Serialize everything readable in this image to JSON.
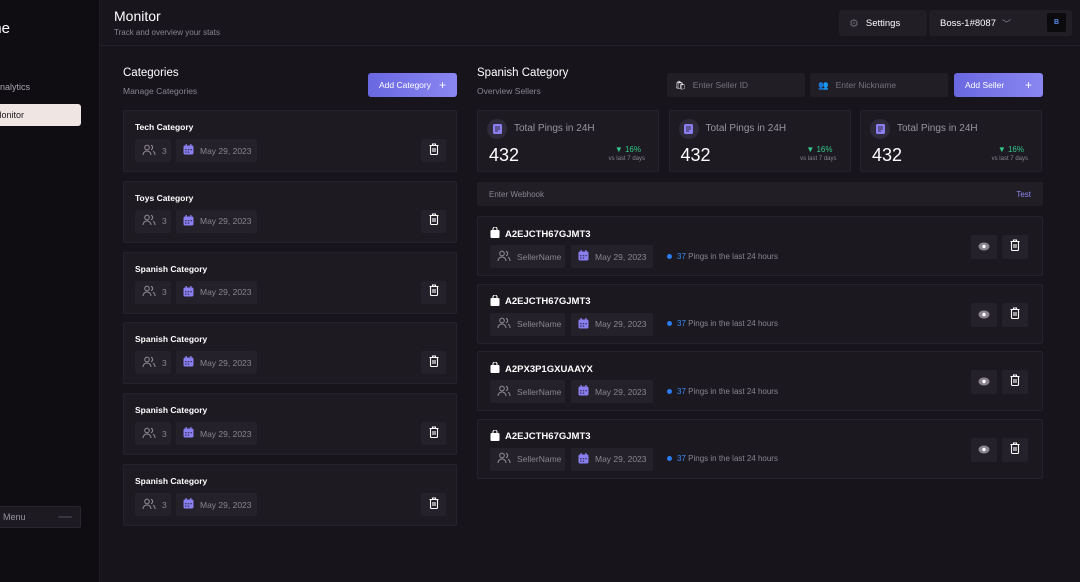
{
  "sidebar": {
    "brand": "Name",
    "items": [
      {
        "label": "Analytics"
      },
      {
        "label": "Monitor"
      }
    ],
    "menu_label": "Menu"
  },
  "header": {
    "title": "Monitor",
    "subtitle": "Track and overview your stats",
    "settings_label": "Settings",
    "username": "Boss-1#8087",
    "avatar_initial": "B"
  },
  "categories": {
    "title": "Categories",
    "subtitle": "Manage Categories",
    "add_label": "Add Category",
    "items": [
      {
        "name": "Tech Category",
        "members": "3",
        "date": "May 29, 2023"
      },
      {
        "name": "Toys Category",
        "members": "3",
        "date": "May 29, 2023"
      },
      {
        "name": "Spanish Category",
        "members": "3",
        "date": "May 29, 2023"
      },
      {
        "name": "Spanish Category",
        "members": "3",
        "date": "May 29, 2023"
      },
      {
        "name": "Spanish Category",
        "members": "3",
        "date": "May 29, 2023"
      },
      {
        "name": "Spanish Category",
        "members": "3",
        "date": "May 29, 2023"
      }
    ]
  },
  "sellers": {
    "title": "Spanish Category",
    "subtitle": "Overview Sellers",
    "seller_id_placeholder": "Enter Seller ID",
    "nickname_placeholder": "Enter Nickname",
    "add_label": "Add Seller",
    "stats": [
      {
        "label": "Total Pings in 24H",
        "value": "432",
        "change": "16%",
        "compare": "vs last 7 days"
      },
      {
        "label": "Total Pings in 24H",
        "value": "432",
        "change": "16%",
        "compare": "vs last 7 days"
      },
      {
        "label": "Total Pings in 24H",
        "value": "432",
        "change": "16%",
        "compare": "vs last 7 days"
      }
    ],
    "webhook_placeholder": "Enter Webhook",
    "test_label": "Test",
    "items": [
      {
        "id": "A2EJCTH67GJMT3",
        "name": "SellerName",
        "date": "May 29, 2023",
        "pings": "37",
        "pings_text": "Pings in the last 24 hours"
      },
      {
        "id": "A2EJCTH67GJMT3",
        "name": "SellerName",
        "date": "May 29, 2023",
        "pings": "37",
        "pings_text": "Pings in the last 24 hours"
      },
      {
        "id": "A2PX3P1GXUAAYX",
        "name": "SellerName",
        "date": "May 29, 2023",
        "pings": "37",
        "pings_text": "Pings in the last 24 hours"
      },
      {
        "id": "A2EJCTH67GJMT3",
        "name": "SellerName",
        "date": "May 29, 2023",
        "pings": "37",
        "pings_text": "Pings in the last 24 hours"
      }
    ]
  },
  "colors": {
    "accent": "#7a77ea",
    "positive": "#34c98a",
    "ping_blue": "#3a8af5",
    "calendar": "#8a7ff0"
  }
}
